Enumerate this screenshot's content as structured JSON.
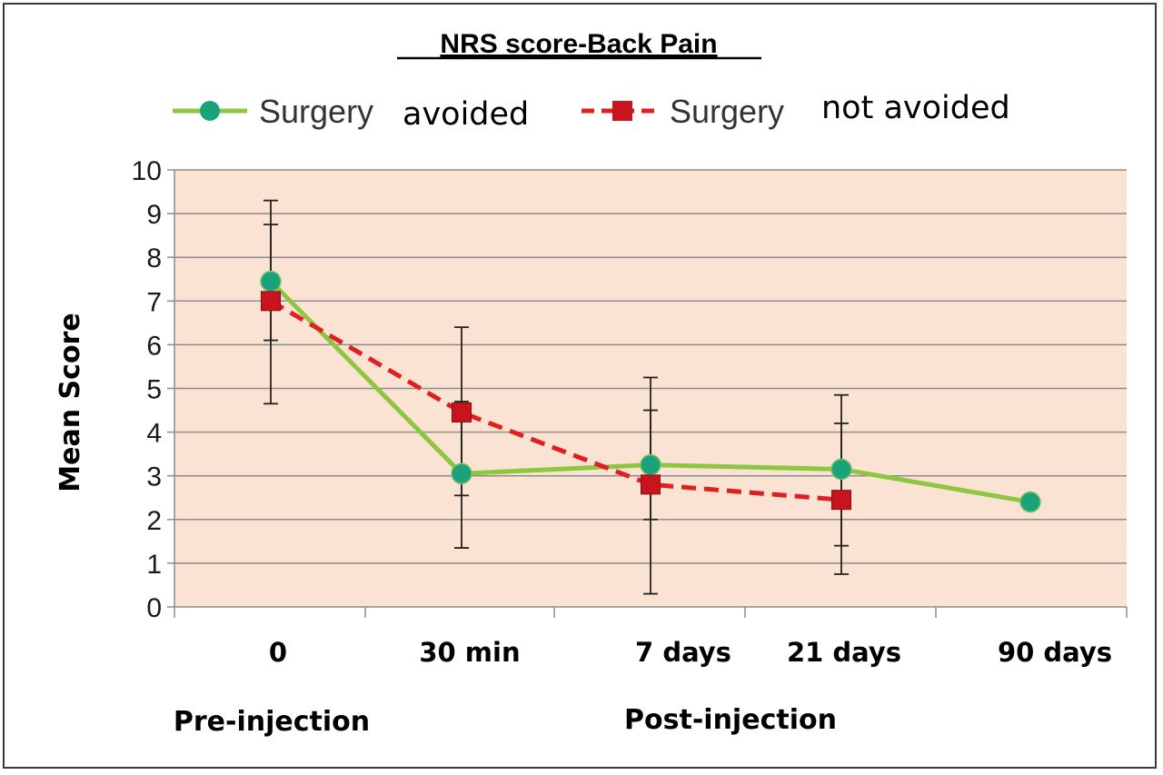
{
  "chart_data": {
    "type": "line",
    "title": "NRS score-Back Pain",
    "ylabel": "Mean Score",
    "ylim": [
      0,
      10
    ],
    "yticks": [
      "0",
      "1",
      "2",
      "3",
      "4",
      "5",
      "6",
      "7",
      "8",
      "9",
      "10"
    ],
    "categories": [
      "0",
      "30 min",
      "7 days",
      "21 days",
      "90 days"
    ],
    "group_labels": {
      "pre": "Pre-injection",
      "post": "Post-injection"
    },
    "legend": {
      "position": "top",
      "series_1_prefix": "Surgery",
      "series_1_suffix": "avoided",
      "series_2_prefix": "Surgery",
      "series_2_suffix": "not avoided"
    },
    "grid": true,
    "series": [
      {
        "name": "Surgery avoided",
        "color": "#8dc63f",
        "marker": "circle",
        "marker_color": "#1aa37a",
        "style": "solid",
        "values": [
          7.45,
          3.05,
          3.25,
          3.15,
          2.4
        ],
        "err_low": [
          6.1,
          1.35,
          2.0,
          1.4,
          null
        ],
        "err_high": [
          8.75,
          4.7,
          4.5,
          4.2,
          null
        ]
      },
      {
        "name": "Surgery not avoided",
        "color": "#e02020",
        "marker": "square",
        "marker_color": "#c8141e",
        "style": "dashed",
        "values": [
          7.0,
          4.45,
          2.8,
          2.45,
          null
        ],
        "err_low": [
          4.65,
          2.55,
          0.3,
          0.75,
          null
        ],
        "err_high": [
          9.3,
          6.4,
          5.25,
          4.85,
          null
        ]
      }
    ],
    "plot_background": "#fbe3d3"
  }
}
